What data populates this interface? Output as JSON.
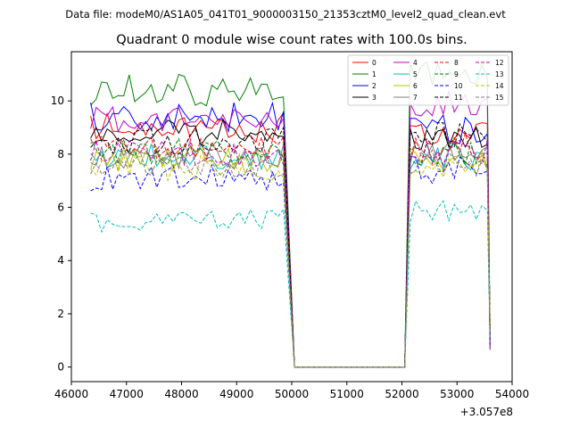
{
  "chart_data": {
    "type": "line",
    "supertitle": "Data file: modeM0/AS1A05_041T01_9000003150_21353cztM0_level2_quad_clean.evt",
    "title": "Quadrant 0 module wise count rates with 100.0s bins.",
    "xlabel": "",
    "ylabel": "",
    "x_offset_label": "+3.057e8",
    "xlim": [
      46000,
      54000
    ],
    "ylim": [
      -0.55,
      11.85
    ],
    "xticks": [
      46000,
      47000,
      48000,
      49000,
      50000,
      51000,
      52000,
      53000,
      54000
    ],
    "xtick_labels": [
      "46000",
      "47000",
      "48000",
      "49000",
      "50000",
      "51000",
      "52000",
      "53000",
      "54000"
    ],
    "yticks": [
      0,
      2,
      4,
      6,
      8,
      10
    ],
    "ytick_labels": [
      "0",
      "2",
      "4",
      "6",
      "8",
      "10"
    ],
    "segments": {
      "seg1": {
        "start": 46350,
        "step": 100,
        "count": 36
      },
      "gap_zero": {
        "start": 50050,
        "end": 52050
      },
      "seg2": {
        "start": 52150,
        "step": 100,
        "count": 15
      }
    },
    "legend": {
      "location": "upper right",
      "columns": 4
    },
    "series": [
      {
        "name": "0",
        "color": "#ff0000",
        "dash": "solid",
        "level1": 9.0,
        "amp1": 0.55,
        "level2": 8.8,
        "amp2": 0.5
      },
      {
        "name": "1",
        "color": "#008000",
        "dash": "solid",
        "level1": 10.4,
        "amp1": 0.6,
        "level2": 11.0,
        "amp2": 0.5
      },
      {
        "name": "2",
        "color": "#0000ff",
        "dash": "solid",
        "level1": 9.4,
        "amp1": 0.55,
        "level2": 8.9,
        "amp2": 0.6
      },
      {
        "name": "3",
        "color": "#000000",
        "dash": "solid",
        "level1": 8.8,
        "amp1": 0.5,
        "level2": 8.6,
        "amp2": 0.5
      },
      {
        "name": "4",
        "color": "#bf00bf",
        "dash": "solid",
        "level1": 9.3,
        "amp1": 0.5,
        "level2": 9.9,
        "amp2": 0.5
      },
      {
        "name": "5",
        "color": "#00bfbf",
        "dash": "solid",
        "level1": 7.9,
        "amp1": 0.5,
        "level2": 7.9,
        "amp2": 0.5
      },
      {
        "name": "6",
        "color": "#bfbf00",
        "dash": "solid",
        "level1": 7.8,
        "amp1": 0.5,
        "level2": 7.8,
        "amp2": 0.5
      },
      {
        "name": "7",
        "color": "#808080",
        "dash": "solid",
        "level1": 7.9,
        "amp1": 0.5,
        "level2": 8.0,
        "amp2": 0.5
      },
      {
        "name": "8",
        "color": "#ff0000",
        "dash": "dashed",
        "level1": 8.2,
        "amp1": 0.5,
        "level2": 8.3,
        "amp2": 0.5
      },
      {
        "name": "9",
        "color": "#008000",
        "dash": "dashed",
        "level1": 8.1,
        "amp1": 0.5,
        "level2": 8.0,
        "amp2": 0.5
      },
      {
        "name": "10",
        "color": "#0000ff",
        "dash": "dashed",
        "level1": 7.1,
        "amp1": 0.5,
        "level2": 7.4,
        "amp2": 0.5
      },
      {
        "name": "11",
        "color": "#000000",
        "dash": "dashed",
        "level1": 8.5,
        "amp1": 0.5,
        "level2": 8.7,
        "amp2": 0.5
      },
      {
        "name": "12",
        "color": "#bf00bf",
        "dash": "dashed",
        "level1": 8.0,
        "amp1": 0.5,
        "level2": 8.1,
        "amp2": 0.5
      },
      {
        "name": "13",
        "color": "#00bfbf",
        "dash": "dashed",
        "level1": 5.5,
        "amp1": 0.45,
        "level2": 5.9,
        "amp2": 0.5
      },
      {
        "name": "14",
        "color": "#bfbf00",
        "dash": "dashed",
        "level1": 7.5,
        "amp1": 0.5,
        "level2": 7.6,
        "amp2": 0.5
      },
      {
        "name": "15",
        "color": "#808080",
        "dash": "dashed",
        "level1": 7.6,
        "amp1": 0.5,
        "level2": 7.7,
        "amp2": 0.5
      }
    ]
  }
}
